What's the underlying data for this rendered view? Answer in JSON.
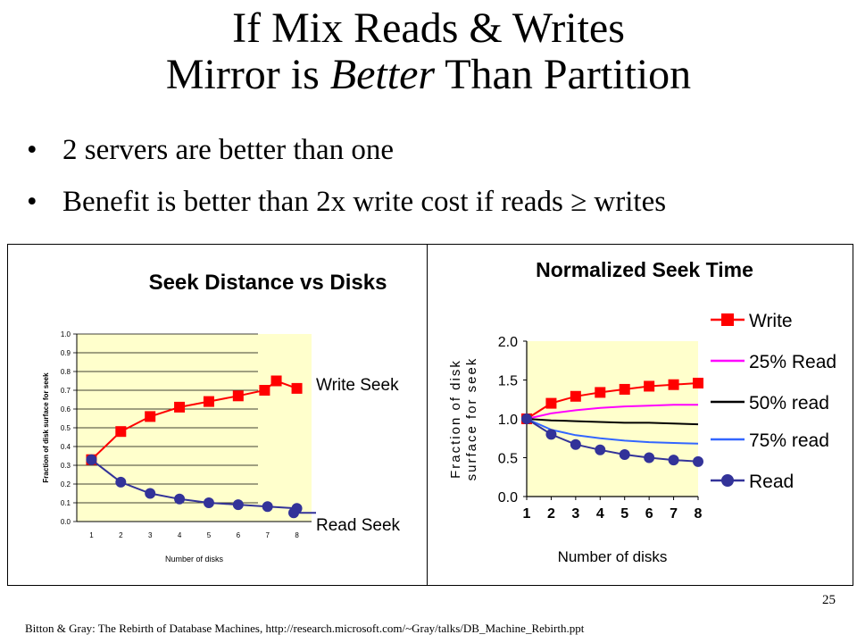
{
  "slide": {
    "title_line1": "If Mix Reads & Writes",
    "title_line2_pre": "Mirror is ",
    "title_line2_em": "Better",
    "title_line2_post": " Than Partition",
    "bullets": [
      "2 servers are better than one",
      "Benefit is better than 2x write cost if reads ≥ writes"
    ],
    "bullet_symbol": "•",
    "slide_number": "25",
    "citation": "Bitton & Gray: The Rebirth of Database Machines, http://research.microsoft.com/~Gray/talks/DB_Machine_Rebirth.ppt"
  },
  "colors": {
    "plot_bg": "#ffffcc",
    "write": "#ff0000",
    "read": "#333399",
    "pct25": "#ff00ff",
    "pct50": "#000000",
    "pct75": "#3366ff"
  },
  "chart_data": [
    {
      "type": "line",
      "title": "Seek Distance vs Disks",
      "xlabel": "Number of disks",
      "ylabel": "Fraction of disk surface for seek",
      "x": [
        1,
        2,
        3,
        4,
        5,
        6,
        7,
        8
      ],
      "xticks": [
        "1",
        "2",
        "3",
        "4",
        "5",
        "6",
        "7",
        "8"
      ],
      "yticks": [
        "0.0",
        "0.1",
        "0.2",
        "0.3",
        "0.4",
        "0.5",
        "0.6",
        "0.7",
        "0.8",
        "0.9",
        "1.0"
      ],
      "ylim": [
        0,
        1
      ],
      "grid": true,
      "legend": "right-inline",
      "series": [
        {
          "name": "Write Seek",
          "color_key": "write",
          "marker": "square",
          "points": [
            [
              1,
              0.33
            ],
            [
              2,
              0.48
            ],
            [
              3,
              0.56
            ],
            [
              4,
              0.61
            ],
            [
              5,
              0.64
            ],
            [
              6,
              0.67
            ],
            [
              6.9,
              0.7
            ],
            [
              7.3,
              0.75
            ],
            [
              8,
              0.71
            ]
          ]
        },
        {
          "name": "Read Seek",
          "color_key": "read",
          "marker": "circle",
          "points": [
            [
              1,
              0.33
            ],
            [
              2,
              0.21
            ],
            [
              3,
              0.15
            ],
            [
              4,
              0.12
            ],
            [
              5,
              0.1
            ],
            [
              6,
              0.09
            ],
            [
              7,
              0.08
            ],
            [
              8,
              0.07
            ]
          ]
        }
      ]
    },
    {
      "type": "line",
      "title": "Normalized Seek Time",
      "xlabel": "Number of disks",
      "ylabel_line1": "Fraction of disk",
      "ylabel_line2": "surface for seek",
      "x": [
        1,
        2,
        3,
        4,
        5,
        6,
        7,
        8
      ],
      "xticks": [
        "1",
        "2",
        "3",
        "4",
        "5",
        "6",
        "7",
        "8"
      ],
      "yticks": [
        "0.0",
        "0.5",
        "1.0",
        "1.5",
        "2.0"
      ],
      "ylim": [
        0,
        2
      ],
      "grid": false,
      "legend": "right",
      "series": [
        {
          "name": "Write",
          "color_key": "write",
          "marker": "square",
          "values": [
            1.0,
            1.2,
            1.29,
            1.34,
            1.38,
            1.42,
            1.44,
            1.46
          ]
        },
        {
          "name": "25% Read",
          "color_key": "pct25",
          "marker": "none",
          "values": [
            1.0,
            1.07,
            1.11,
            1.14,
            1.16,
            1.17,
            1.18,
            1.18
          ]
        },
        {
          "name": "50% read",
          "color_key": "pct50",
          "marker": "none",
          "values": [
            1.0,
            0.98,
            0.97,
            0.96,
            0.95,
            0.95,
            0.94,
            0.93
          ]
        },
        {
          "name": "75% read",
          "color_key": "pct75",
          "marker": "none",
          "values": [
            1.0,
            0.86,
            0.79,
            0.75,
            0.72,
            0.7,
            0.69,
            0.68
          ]
        },
        {
          "name": "Read",
          "color_key": "read",
          "marker": "circle",
          "values": [
            1.0,
            0.8,
            0.67,
            0.6,
            0.54,
            0.5,
            0.47,
            0.45
          ]
        }
      ]
    }
  ]
}
